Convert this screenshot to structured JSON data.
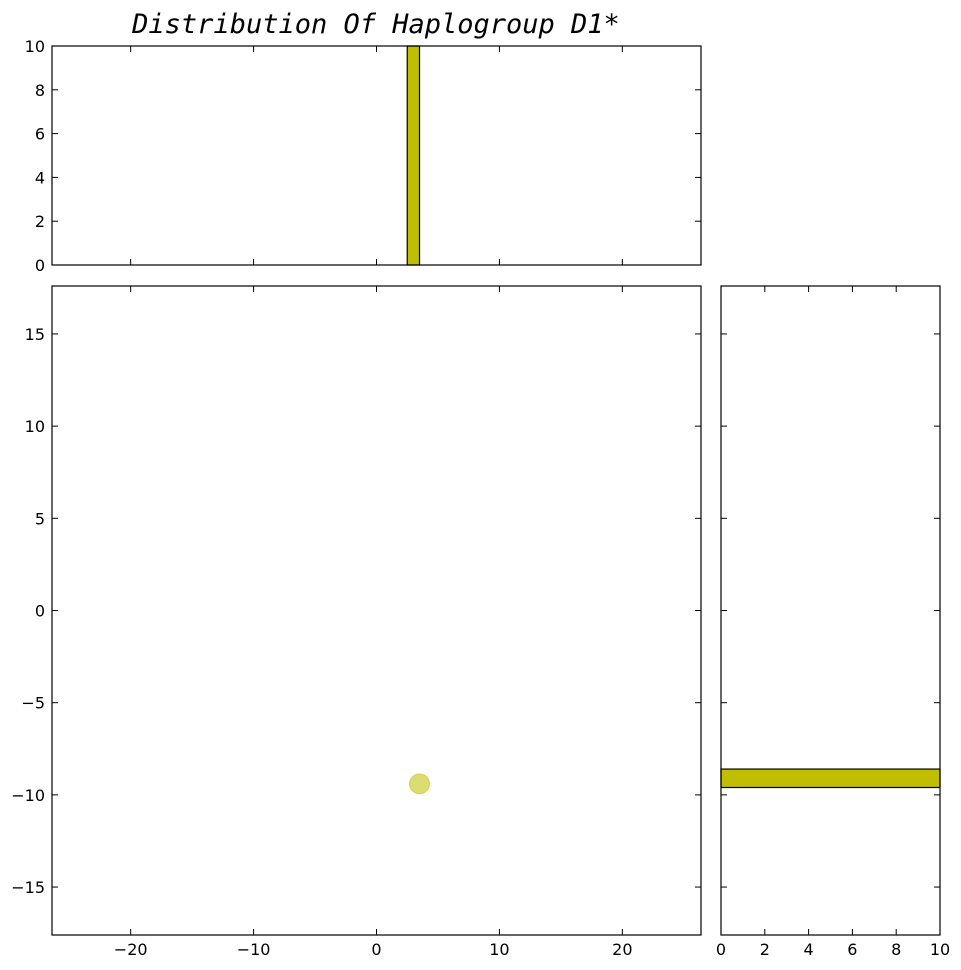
{
  "chart_data": [
    {
      "panel": "main",
      "type": "scatter",
      "title": "",
      "xlabel": "",
      "ylabel": "",
      "xlim": [
        -26.4,
        26.4
      ],
      "ylim": [
        -17.6,
        17.6
      ],
      "xticks": [
        -20,
        -10,
        0,
        10,
        20
      ],
      "yticks": [
        -15,
        -10,
        -5,
        0,
        5,
        10,
        15
      ],
      "points": [
        {
          "x": 3.5,
          "y": -9.4
        }
      ],
      "marker_color": "#bfbf00",
      "marker_alpha": 0.55
    },
    {
      "panel": "top-histogram",
      "type": "bar",
      "title": "Distribution Of Haplogroup D1*",
      "xlim": [
        -26.4,
        26.4
      ],
      "ylim": [
        0,
        10
      ],
      "yticks": [
        0,
        2,
        4,
        6,
        8,
        10
      ],
      "bins": [
        {
          "x0": 2.5,
          "x1": 3.5,
          "count": 10
        }
      ],
      "color": "#bfbf00"
    },
    {
      "panel": "right-histogram",
      "type": "bar",
      "orientation": "horizontal",
      "ylim": [
        -17.6,
        17.6
      ],
      "xlim": [
        0,
        10
      ],
      "xticks": [
        0,
        2,
        4,
        6,
        8,
        10
      ],
      "bins": [
        {
          "y0": -9.6,
          "y1": -8.6,
          "count": 10
        }
      ],
      "color": "#bfbf00"
    }
  ]
}
